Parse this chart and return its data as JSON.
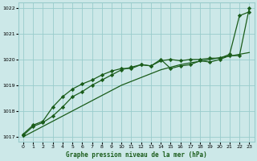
{
  "title": "Graphe pression niveau de la mer (hPa)",
  "bg_color": "#cce8e8",
  "grid_color": "#99cccc",
  "line_color": "#1a5c1a",
  "marker_color": "#1a5c1a",
  "xlim": [
    -0.5,
    23.5
  ],
  "ylim": [
    1016.8,
    1022.2
  ],
  "xticks": [
    0,
    1,
    2,
    3,
    4,
    5,
    6,
    7,
    8,
    9,
    10,
    11,
    12,
    13,
    14,
    15,
    16,
    17,
    18,
    19,
    20,
    21,
    22,
    23
  ],
  "yticks": [
    1017,
    1018,
    1019,
    1020,
    1021,
    1022
  ],
  "series1_x": [
    0,
    1,
    2,
    3,
    4,
    5,
    6,
    7,
    8,
    9,
    10,
    11,
    12,
    13,
    14,
    15,
    16,
    17,
    18,
    19,
    20,
    21,
    22,
    23
  ],
  "series1_y": [
    1017.1,
    1017.45,
    1017.6,
    1018.15,
    1018.55,
    1018.85,
    1019.05,
    1019.2,
    1019.4,
    1019.55,
    1019.65,
    1019.65,
    1019.8,
    1019.75,
    1020.0,
    1019.65,
    1019.75,
    1019.8,
    1019.95,
    1019.9,
    1020.0,
    1020.15,
    1020.15,
    1022.0
  ],
  "series2_x": [
    0,
    1,
    2,
    3,
    4,
    5,
    6,
    7,
    8,
    9,
    10,
    11,
    12,
    13,
    14,
    15,
    16,
    17,
    18,
    19,
    20,
    21,
    22,
    23
  ],
  "series2_y": [
    1017.05,
    1017.4,
    1017.55,
    1017.8,
    1018.15,
    1018.55,
    1018.75,
    1019.0,
    1019.2,
    1019.4,
    1019.6,
    1019.7,
    1019.8,
    1019.75,
    1019.95,
    1020.0,
    1019.95,
    1020.0,
    1020.0,
    1020.05,
    1020.05,
    1020.2,
    1021.7,
    1021.85
  ],
  "series3_x": [
    0,
    1,
    2,
    3,
    4,
    5,
    6,
    7,
    8,
    9,
    10,
    11,
    12,
    13,
    14,
    15,
    16,
    17,
    18,
    19,
    20,
    21,
    22,
    23
  ],
  "series3_y": [
    1017.0,
    1017.2,
    1017.4,
    1017.6,
    1017.8,
    1018.0,
    1018.2,
    1018.4,
    1018.6,
    1018.8,
    1019.0,
    1019.15,
    1019.3,
    1019.45,
    1019.6,
    1019.7,
    1019.8,
    1019.87,
    1019.93,
    1020.0,
    1020.07,
    1020.13,
    1020.2,
    1020.27
  ]
}
